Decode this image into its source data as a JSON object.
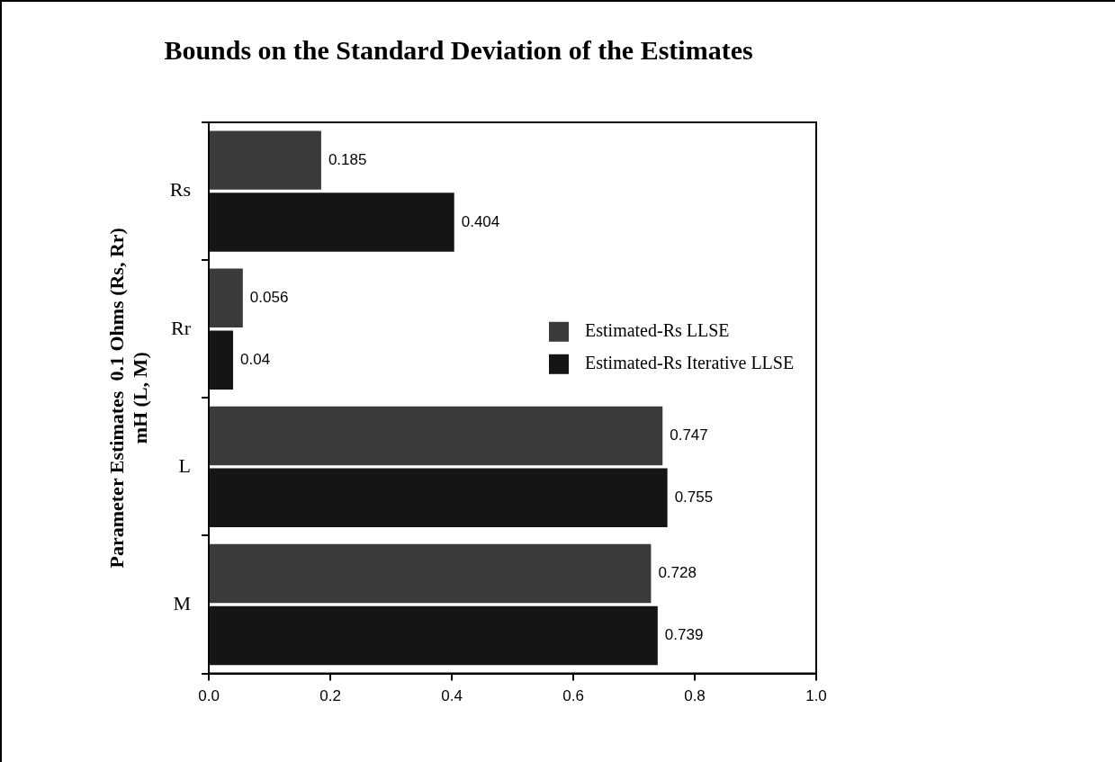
{
  "chart_data": {
    "type": "bar",
    "orientation": "horizontal",
    "title": "Bounds on the Standard Deviation of the Estimates",
    "ylabel": "Parameter Estimates  0.1 Ohms (Rs, Rr)\nmH (L, M)",
    "categories": [
      "Rs",
      "Rr",
      "L",
      "M"
    ],
    "series": [
      {
        "name": "Estimated-Rs LLSE",
        "color": "#3a3a3a",
        "values": [
          0.185,
          0.056,
          0.747,
          0.728
        ]
      },
      {
        "name": "Estimated-Rs Iterative LLSE",
        "color": "#151515",
        "values": [
          0.404,
          0.04,
          0.755,
          0.739
        ]
      }
    ],
    "xlim": [
      0,
      1
    ],
    "xticks": [
      {
        "value": 0,
        "label": "0.0"
      },
      {
        "value": 0.2,
        "label": "0.2"
      },
      {
        "value": 0.4,
        "label": "0.4"
      },
      {
        "value": 0.6,
        "label": "0.6"
      },
      {
        "value": 0.8,
        "label": "0.8"
      },
      {
        "value": 1,
        "label": "1.0"
      }
    ],
    "grid": false,
    "legend": "right",
    "data_labels": true
  }
}
